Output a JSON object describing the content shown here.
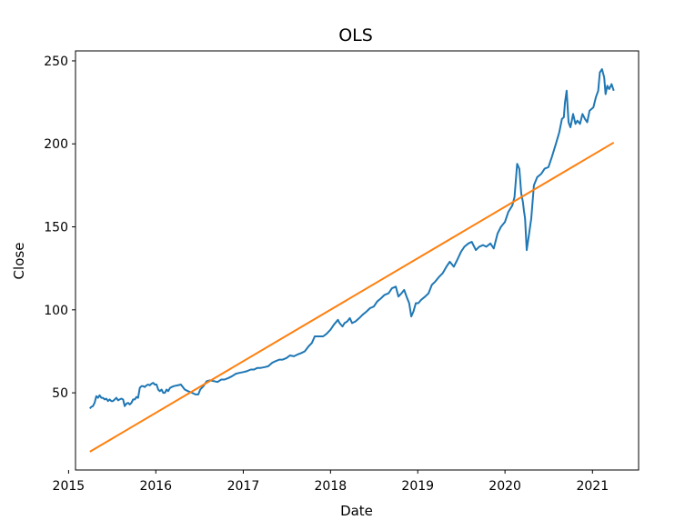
{
  "chart_data": {
    "type": "line",
    "title": "OLS",
    "xlabel": "Date",
    "ylabel": "Close",
    "xlim": [
      "2015-01-30",
      "2021-07-13"
    ],
    "ylim": [
      3.5,
      256
    ],
    "xticks": [
      {
        "value": "2015-01-01",
        "label": "2015"
      },
      {
        "value": "2016-01-01",
        "label": "2016"
      },
      {
        "value": "2017-01-01",
        "label": "2017"
      },
      {
        "value": "2018-01-01",
        "label": "2018"
      },
      {
        "value": "2019-01-01",
        "label": "2019"
      },
      {
        "value": "2020-01-01",
        "label": "2020"
      },
      {
        "value": "2021-01-01",
        "label": "2021"
      }
    ],
    "yticks": [
      50,
      100,
      150,
      200,
      250
    ],
    "grid": false,
    "legend": "none",
    "series": [
      {
        "color": "#1f77b4",
        "x": [
          "2015-03-31",
          "2015-04-06",
          "2015-04-13",
          "2015-04-20",
          "2015-04-27",
          "2015-05-04",
          "2015-05-11",
          "2015-05-18",
          "2015-05-25",
          "2015-06-01",
          "2015-06-08",
          "2015-06-15",
          "2015-06-22",
          "2015-06-29",
          "2015-07-06",
          "2015-07-13",
          "2015-07-20",
          "2015-07-27",
          "2015-08-03",
          "2015-08-10",
          "2015-08-17",
          "2015-08-24",
          "2015-08-31",
          "2015-09-07",
          "2015-09-14",
          "2015-09-21",
          "2015-09-28",
          "2015-10-05",
          "2015-10-12",
          "2015-10-19",
          "2015-10-26",
          "2015-11-02",
          "2015-11-09",
          "2015-11-16",
          "2015-11-23",
          "2015-11-30",
          "2015-12-07",
          "2015-12-14",
          "2015-12-21",
          "2015-12-28",
          "2016-01-04",
          "2016-01-11",
          "2016-01-18",
          "2016-01-25",
          "2016-02-01",
          "2016-02-08",
          "2016-02-15",
          "2016-02-22",
          "2016-03-01",
          "2016-03-15",
          "2016-04-01",
          "2016-04-15",
          "2016-05-01",
          "2016-05-15",
          "2016-06-01",
          "2016-06-15",
          "2016-06-27",
          "2016-07-05",
          "2016-07-18",
          "2016-08-01",
          "2016-08-15",
          "2016-09-01",
          "2016-09-15",
          "2016-10-01",
          "2016-10-15",
          "2016-11-01",
          "2016-11-15",
          "2016-12-01",
          "2016-12-15",
          "2017-01-01",
          "2017-01-15",
          "2017-02-01",
          "2017-02-15",
          "2017-03-01",
          "2017-03-15",
          "2017-04-01",
          "2017-04-15",
          "2017-05-01",
          "2017-05-15",
          "2017-06-01",
          "2017-06-15",
          "2017-07-01",
          "2017-07-15",
          "2017-08-01",
          "2017-08-15",
          "2017-09-01",
          "2017-09-15",
          "2017-10-01",
          "2017-10-15",
          "2017-10-27",
          "2017-11-15",
          "2017-12-01",
          "2017-12-15",
          "2018-01-01",
          "2018-01-15",
          "2018-02-01",
          "2018-02-08",
          "2018-02-20",
          "2018-03-01",
          "2018-03-12",
          "2018-03-23",
          "2018-04-01",
          "2018-04-15",
          "2018-05-01",
          "2018-05-15",
          "2018-06-01",
          "2018-06-15",
          "2018-07-01",
          "2018-07-15",
          "2018-08-01",
          "2018-08-15",
          "2018-09-01",
          "2018-09-15",
          "2018-10-01",
          "2018-10-12",
          "2018-10-25",
          "2018-11-05",
          "2018-11-15",
          "2018-11-26",
          "2018-12-05",
          "2018-12-14",
          "2018-12-24",
          "2019-01-03",
          "2019-01-15",
          "2019-02-01",
          "2019-02-15",
          "2019-03-01",
          "2019-03-15",
          "2019-04-01",
          "2019-04-15",
          "2019-05-01",
          "2019-05-15",
          "2019-06-01",
          "2019-06-15",
          "2019-07-01",
          "2019-07-15",
          "2019-08-01",
          "2019-08-15",
          "2019-09-01",
          "2019-09-15",
          "2019-10-01",
          "2019-10-15",
          "2019-11-01",
          "2019-11-15",
          "2019-12-01",
          "2019-12-15",
          "2020-01-01",
          "2020-01-15",
          "2020-02-01",
          "2020-02-10",
          "2020-02-21",
          "2020-03-01",
          "2020-03-09",
          "2020-03-16",
          "2020-03-20",
          "2020-03-25",
          "2020-04-01",
          "2020-04-10",
          "2020-04-20",
          "2020-05-01",
          "2020-05-15",
          "2020-06-01",
          "2020-06-15",
          "2020-07-01",
          "2020-07-15",
          "2020-08-01",
          "2020-08-15",
          "2020-08-26",
          "2020-09-03",
          "2020-09-08",
          "2020-09-15",
          "2020-09-23",
          "2020-10-01",
          "2020-10-12",
          "2020-10-22",
          "2020-10-30",
          "2020-11-10",
          "2020-11-20",
          "2020-12-01",
          "2020-12-10",
          "2020-12-20",
          "2021-01-05",
          "2021-01-15",
          "2021-01-25",
          "2021-02-01",
          "2021-02-10",
          "2021-02-19",
          "2021-02-25",
          "2021-03-04",
          "2021-03-12",
          "2021-03-22",
          "2021-03-31"
        ],
        "y": [
          40.5,
          41.5,
          42,
          44,
          48,
          47,
          48.5,
          47,
          47,
          46,
          46.5,
          45,
          46,
          45,
          45,
          46,
          47,
          45.5,
          46,
          46.5,
          46,
          42,
          43.5,
          44,
          43,
          44,
          46,
          46,
          47.5,
          47,
          53,
          54,
          54,
          53.5,
          54.5,
          55,
          54.5,
          55.5,
          56,
          55,
          55,
          52,
          51,
          52,
          50,
          50,
          52,
          51,
          53,
          54,
          54.5,
          55,
          52,
          51,
          50,
          49,
          49,
          52,
          54,
          57,
          57.5,
          57,
          56.5,
          58,
          58,
          59,
          60,
          61.5,
          62,
          62.5,
          63,
          64,
          64,
          65,
          65,
          65.5,
          66,
          68,
          69,
          70,
          70,
          71,
          72.5,
          72,
          73,
          74,
          75,
          78,
          80,
          84,
          84,
          84,
          85.5,
          88,
          91,
          94,
          92,
          90,
          92,
          93,
          95,
          92,
          93,
          95,
          97,
          99,
          101,
          102,
          105,
          107,
          109,
          110,
          113,
          114,
          108,
          110,
          112,
          108,
          104,
          96,
          99,
          104,
          104,
          106,
          108,
          110,
          115,
          117,
          120,
          122,
          126,
          129,
          126,
          130,
          135,
          138,
          140,
          141,
          136,
          138,
          139,
          138,
          140,
          137,
          146,
          150,
          153,
          159,
          163,
          168,
          188,
          185,
          170,
          165,
          160,
          155,
          136,
          145,
          155,
          175,
          180,
          182,
          185,
          186,
          192,
          200,
          207,
          215,
          216,
          225,
          232,
          213,
          210,
          218,
          212,
          214,
          212,
          218,
          215,
          213,
          220,
          222,
          228,
          232,
          243,
          245,
          240,
          230,
          235,
          233,
          236,
          232
        ]
      },
      {
        "color": "#ff7f0e",
        "x": [
          "2015-03-31",
          "2021-03-31"
        ],
        "y": [
          14.5,
          200.8
        ]
      }
    ]
  }
}
